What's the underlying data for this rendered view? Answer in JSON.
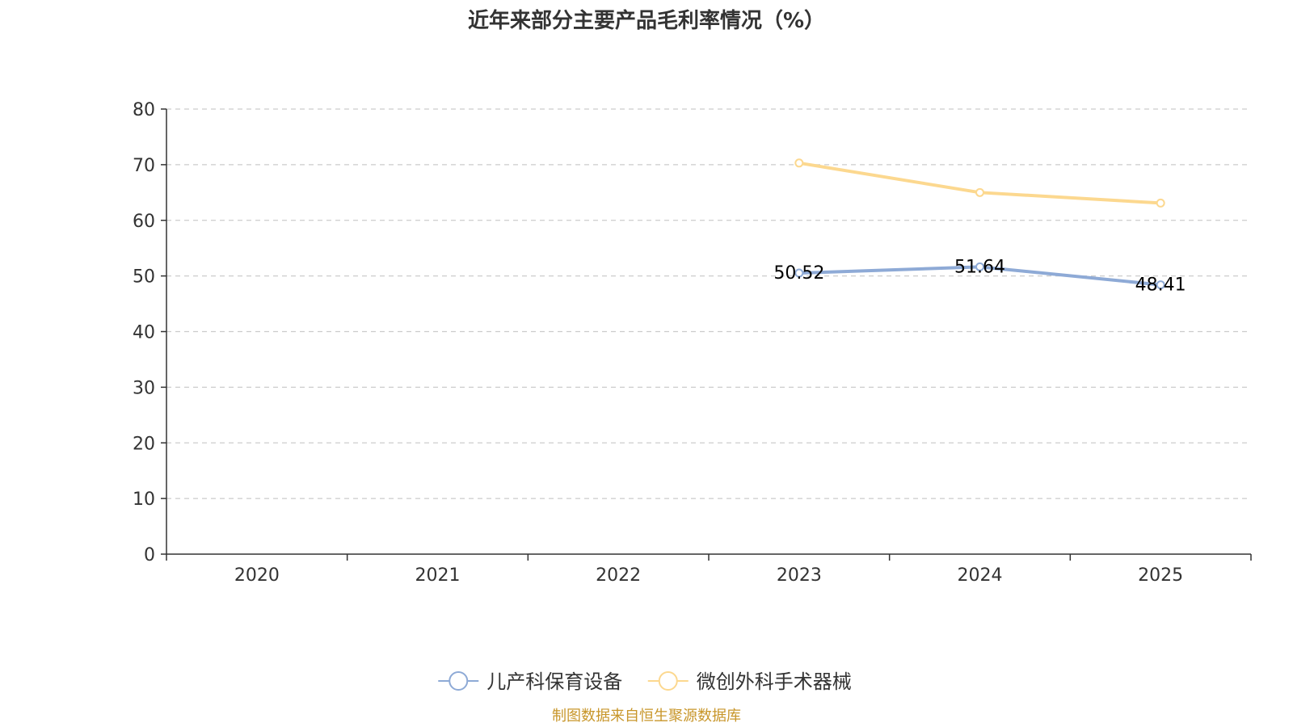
{
  "chart_data": {
    "type": "line",
    "title": "近年来部分主要产品毛利率情况（%）",
    "categories": [
      "2020",
      "2021",
      "2022",
      "2023",
      "2024",
      "2025"
    ],
    "yticks": [
      "0",
      "10",
      "20",
      "30",
      "40",
      "50",
      "60",
      "70",
      "80"
    ],
    "ylim": [
      0,
      80
    ],
    "grid": true,
    "legend_position": "bottom",
    "series": [
      {
        "name": "儿产科保育设备",
        "color": "#8eaad6",
        "values": [
          null,
          null,
          null,
          50.52,
          51.64,
          48.41
        ],
        "labels": [
          "",
          "",
          "",
          "50.52",
          "51.64",
          "48.41"
        ]
      },
      {
        "name": "微创外科手术器械",
        "color": "#fcd88f",
        "values": [
          null,
          null,
          null,
          70.3,
          65.0,
          63.1
        ],
        "labels": [
          "",
          "",
          "",
          "",
          "",
          ""
        ]
      }
    ],
    "source": "制图数据来自恒生聚源数据库",
    "source_color": "#c8962a"
  }
}
